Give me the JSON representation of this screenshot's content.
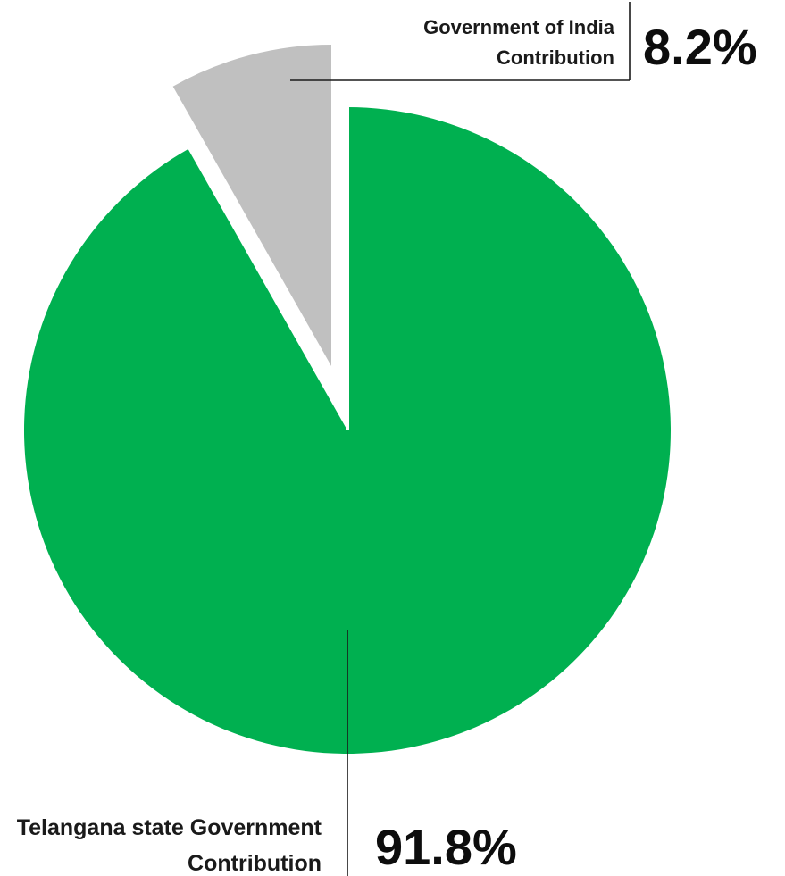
{
  "chart_data": {
    "type": "pie",
    "slices": [
      {
        "label_lines": [
          "Telangana state Government",
          "Contribution"
        ],
        "value": 91.8,
        "value_label": "91.8%",
        "color": "#00b050",
        "exploded": false
      },
      {
        "label_lines": [
          "Government of India",
          "Contribution"
        ],
        "value": 8.2,
        "value_label": "8.2%",
        "color": "#c0c0c0",
        "exploded": true
      }
    ],
    "start": "12 o'clock",
    "direction": "clockwise",
    "leader_line_color": "#1a1a1a"
  }
}
